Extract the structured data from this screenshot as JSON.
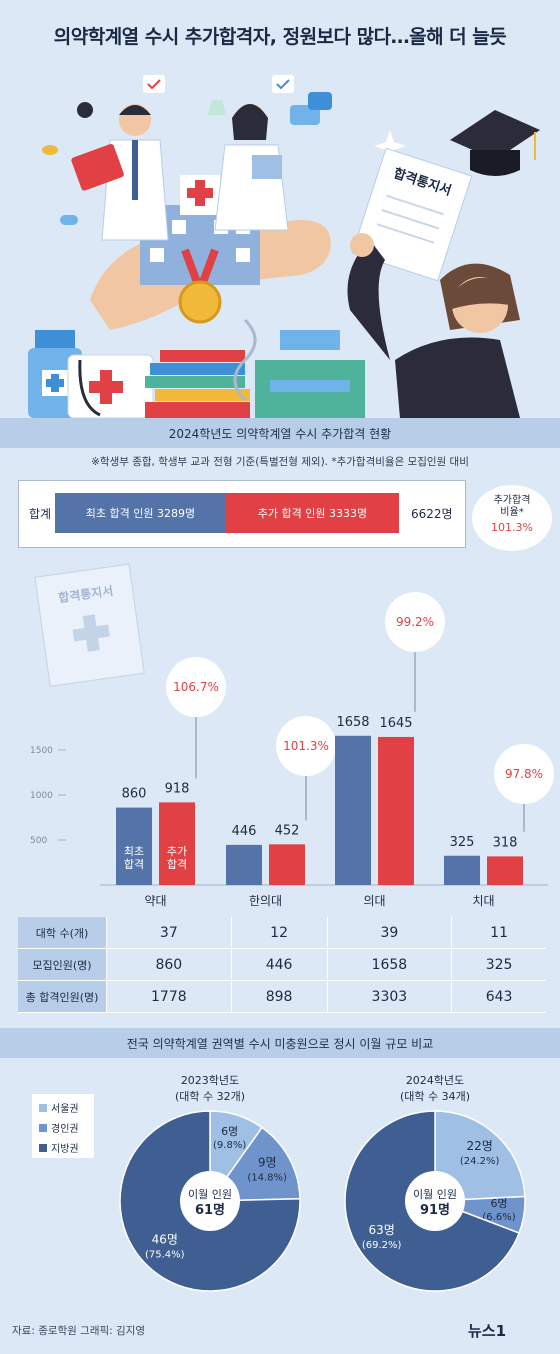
{
  "header": {
    "title": "의약학계열 수시 추가합격자, 정원보다 많다…올해 더 늘듯"
  },
  "illustration": {
    "certificate_text": "합격통지서"
  },
  "section1": {
    "title": "2024학년도 의약학계열 수시 추가합격 현황",
    "note": "※학생부 종합, 학생부 교과 전형 기준(특별전형 제외). *추가합격비율은 모집인원 대비"
  },
  "totals": {
    "row_label": "합계",
    "initial_label": "최초 합격 인원 3289명",
    "additional_label": "추가 합격 인원 3333명",
    "total_label": "6622명",
    "ratio_title": "추가합격\n비율*",
    "ratio_value": "101.3%",
    "initial": 3289,
    "additional": 3333,
    "total": 6622
  },
  "chart_data": [
    {
      "type": "bar",
      "categories": [
        "약대",
        "한의대",
        "의대",
        "치대"
      ],
      "series": [
        {
          "name": "최초 합격",
          "values": [
            860,
            446,
            1658,
            325
          ]
        },
        {
          "name": "추가 합격",
          "values": [
            918,
            452,
            1645,
            318
          ]
        }
      ],
      "bar_labels": [
        "최초\n합격",
        "추가\n합격"
      ],
      "ratio_labels": [
        "106.7%",
        "101.3%",
        "99.2%",
        "97.8%"
      ],
      "yticks": [
        500,
        1000,
        1500
      ],
      "ylim": [
        0,
        1900
      ],
      "colors": {
        "initial": "#5473a8",
        "additional": "#e14145"
      },
      "decor_text": "합격통지서"
    },
    {
      "type": "pie",
      "title": "2023학년도",
      "subtitle": "(대학 수 32개)",
      "center_label": "이월 인원",
      "center_value": "61명",
      "slices": [
        {
          "name": "서울권",
          "value": 9.8,
          "label": "6명",
          "sub": "(9.8%)",
          "color": "#9fbfe5"
        },
        {
          "name": "경인권",
          "value": 14.8,
          "label": "9명",
          "sub": "(14.8%)",
          "color": "#6f94cc"
        },
        {
          "name": "지방권",
          "value": 75.4,
          "label": "46명",
          "sub": "(75.4%)",
          "color": "#3f5e92"
        }
      ]
    },
    {
      "type": "pie",
      "title": "2024학년도",
      "subtitle": "(대학 수 34개)",
      "center_label": "이월 인원",
      "center_value": "91명",
      "slices": [
        {
          "name": "서울권",
          "value": 24.2,
          "label": "22명",
          "sub": "(24.2%)",
          "color": "#9fbfe5"
        },
        {
          "name": "경인권",
          "value": 6.6,
          "label": "6명",
          "sub": "(6.6%)",
          "color": "#6f94cc"
        },
        {
          "name": "지방권",
          "value": 69.2,
          "label": "63명",
          "sub": "(69.2%)",
          "color": "#3f5e92"
        }
      ]
    }
  ],
  "stats_table": {
    "rows": [
      {
        "label": "대학 수(개)",
        "values": [
          "37",
          "12",
          "39",
          "11"
        ]
      },
      {
        "label": "모집인원(명)",
        "values": [
          "860",
          "446",
          "1658",
          "325"
        ]
      },
      {
        "label": "총 합격인원(명)",
        "values": [
          "1778",
          "898",
          "3303",
          "643"
        ]
      }
    ]
  },
  "section2": {
    "title": "전국 의약학계열 권역별 수시 미충원으로 정시 이월 규모 비교"
  },
  "legend": [
    {
      "name": "서울권",
      "color": "#9fbfe5"
    },
    {
      "name": "경인권",
      "color": "#6f94cc"
    },
    {
      "name": "지방권",
      "color": "#3f5e92"
    }
  ],
  "footer": {
    "source": "자료: 종로학원   그래픽: 김지영",
    "logo": "뉴스1"
  }
}
